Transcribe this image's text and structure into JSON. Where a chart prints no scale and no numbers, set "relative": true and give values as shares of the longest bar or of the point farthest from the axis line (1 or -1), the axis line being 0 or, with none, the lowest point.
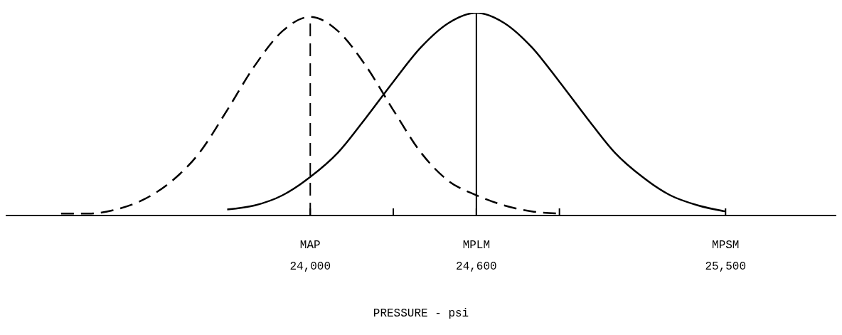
{
  "chart_data": {
    "type": "line",
    "relative": true,
    "xlabel": "PRESSURE - psi",
    "xlim": [
      22900,
      25900
    ],
    "xticks": [
      {
        "value": 24000,
        "label": "24,000"
      },
      {
        "value": 24300,
        "label": null
      },
      {
        "value": 24600,
        "label": "24,600"
      },
      {
        "value": 24900,
        "label": null
      },
      {
        "value": 25500,
        "label": "25,500"
      }
    ],
    "annotations": [
      "MPSM"
    ],
    "series": [
      {
        "color": "#000000",
        "line_style": "dashed",
        "x": [
          23100,
          23200,
          23300,
          23400,
          23500,
          23600,
          23700,
          23800,
          23900,
          24000,
          24100,
          24200,
          24300,
          24400,
          24500,
          24600,
          24700,
          24800,
          24900
        ],
        "values": [
          0.01,
          0.01,
          0.03,
          0.08,
          0.17,
          0.31,
          0.52,
          0.74,
          0.91,
          0.98,
          0.91,
          0.74,
          0.52,
          0.31,
          0.17,
          0.1,
          0.05,
          0.02,
          0.01
        ]
      },
      {
        "color": "#000000",
        "line_style": "solid",
        "x": [
          23700,
          23800,
          23900,
          24000,
          24100,
          24200,
          24300,
          24400,
          24500,
          24600,
          24700,
          24800,
          24900,
          25000,
          25100,
          25200,
          25300,
          25400,
          25500
        ],
        "values": [
          0.03,
          0.05,
          0.1,
          0.19,
          0.31,
          0.48,
          0.66,
          0.83,
          0.95,
          1,
          0.95,
          0.83,
          0.66,
          0.48,
          0.31,
          0.19,
          0.1,
          0.05,
          0.02
        ]
      }
    ],
    "ref_lines": [
      {
        "axis": "x",
        "value": 24000,
        "label": "MAP",
        "line_style": "dashed",
        "color": "#000000"
      },
      {
        "axis": "x",
        "value": 24600,
        "label": "MPLM",
        "line_style": "solid",
        "color": "#000000"
      }
    ],
    "grid": false,
    "marker": "none"
  }
}
